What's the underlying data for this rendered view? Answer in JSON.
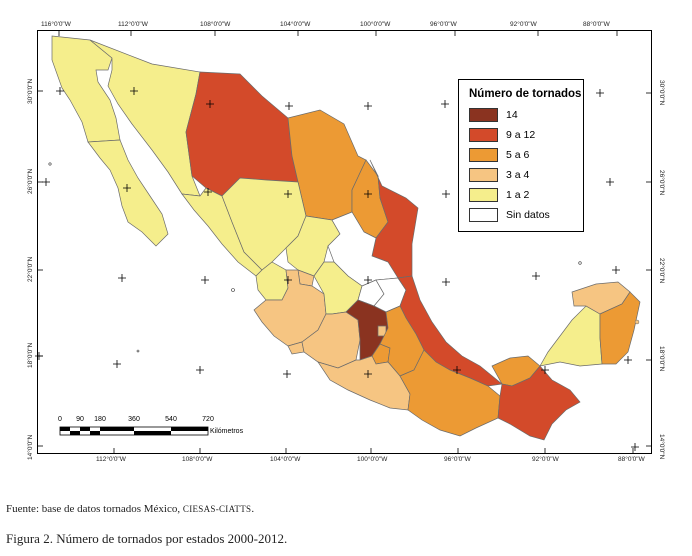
{
  "colors": {
    "c14": "#8a3320",
    "c9a12": "#d34a2a",
    "c5a6": "#ec9a34",
    "c3a4": "#f6c582",
    "c1a2": "#f5ee8c",
    "sin": "#ffffff"
  },
  "legend": {
    "title": "Número de tornados",
    "items": [
      {
        "label": "14",
        "color": "#8a3320"
      },
      {
        "label": "9 a 12",
        "color": "#d34a2a"
      },
      {
        "label": "5 a 6",
        "color": "#ec9a34"
      },
      {
        "label": "3 a 4",
        "color": "#f6c582"
      },
      {
        "label": "1 a 2",
        "color": "#f5ee8c"
      },
      {
        "label": "Sin datos",
        "color": "#ffffff"
      }
    ]
  },
  "top_longitudes": [
    "116°0'0\"W",
    "112°0'0\"W",
    "108°0'0\"W",
    "104°0'0\"W",
    "100°0'0\"W",
    "96°0'0\"W",
    "92°0'0\"W",
    "88°0'0\"W"
  ],
  "bottom_longitudes": [
    "112°0'0\"W",
    "108°0'0\"W",
    "104°0'0\"W",
    "100°0'0\"W",
    "96°0'0\"W",
    "92°0'0\"W",
    "88°0'0\"W"
  ],
  "latitudes": [
    "30°0'0\"N",
    "26°0'0\"N",
    "22°0'0\"N",
    "18°0'0\"N",
    "14°0'0\"N"
  ],
  "scale": {
    "ticks": [
      "0",
      "90",
      "180",
      "360",
      "540",
      "720"
    ],
    "unit": "Kilómetros"
  },
  "source": {
    "prefix": "Fuente: base de datos tornados México, ",
    "org": "CIESAS-CIATTS",
    "suffix": "."
  },
  "caption": "Figura 2. Número de tornados por estados 2000-2012."
}
